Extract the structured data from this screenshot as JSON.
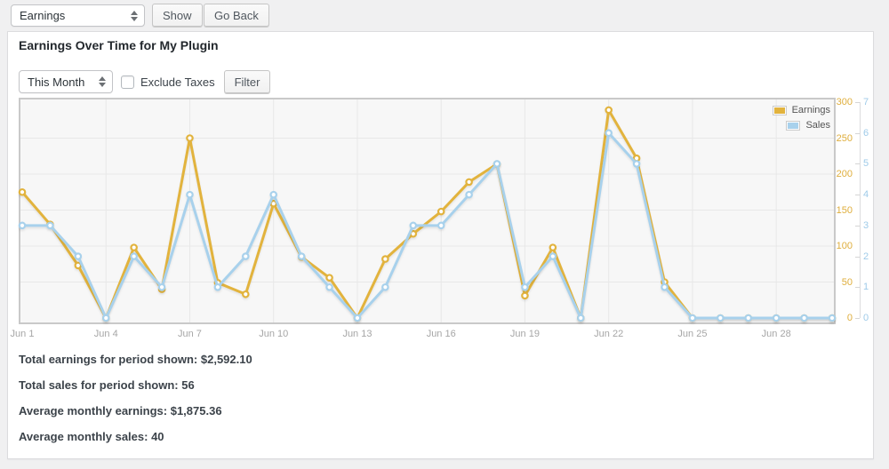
{
  "topbar": {
    "report_select": {
      "value": "Earnings"
    },
    "show_button": "Show",
    "go_back_button": "Go Back"
  },
  "panel": {
    "title": "Earnings Over Time for My Plugin",
    "filters": {
      "period_select": {
        "value": "This Month"
      },
      "exclude_taxes_label": "Exclude Taxes",
      "exclude_taxes_checked": false,
      "filter_button": "Filter"
    },
    "summary": {
      "total_earnings": "Total earnings for period shown: $2,592.10",
      "total_sales": "Total sales for period shown: 56",
      "avg_earnings": "Average monthly earnings: $1,875.36",
      "avg_sales": "Average monthly sales: 40"
    }
  },
  "chart_data": {
    "type": "line",
    "x": [
      "Jun 1",
      "Jun 2",
      "Jun 3",
      "Jun 4",
      "Jun 5",
      "Jun 6",
      "Jun 7",
      "Jun 8",
      "Jun 9",
      "Jun 10",
      "Jun 11",
      "Jun 12",
      "Jun 13",
      "Jun 14",
      "Jun 15",
      "Jun 16",
      "Jun 17",
      "Jun 18",
      "Jun 19",
      "Jun 20",
      "Jun 21",
      "Jun 22",
      "Jun 23",
      "Jun 24",
      "Jun 25",
      "Jun 26",
      "Jun 27",
      "Jun 28",
      "Jun 29",
      "Jun 30"
    ],
    "series": [
      {
        "name": "Earnings",
        "axis": "earnings",
        "color": "#e2b33d",
        "values": [
          175,
          130,
          73,
          0,
          98,
          40,
          250,
          49,
          33,
          159,
          85,
          56,
          0,
          82,
          117,
          148,
          189,
          214,
          31,
          98,
          0,
          289,
          222,
          50,
          0,
          0,
          0,
          0,
          0,
          0
        ]
      },
      {
        "name": "Sales",
        "axis": "sales",
        "color": "#a8d1ec",
        "values": [
          3,
          3,
          2,
          0,
          2,
          1,
          4,
          1,
          2,
          4,
          2,
          1,
          0,
          1,
          3,
          3,
          4,
          5,
          1,
          2,
          0,
          6,
          5,
          1,
          0,
          0,
          0,
          0,
          0,
          0
        ]
      }
    ],
    "axes": {
      "x": {
        "tick_indices": [
          0,
          3,
          6,
          9,
          12,
          15,
          18,
          21,
          24,
          27
        ],
        "color": "#a6a6a6"
      },
      "earnings": {
        "side": "right",
        "min": 0,
        "max": 300,
        "ticks": [
          0,
          50,
          100,
          150,
          200,
          250,
          300
        ],
        "color": "#dfae3d"
      },
      "sales": {
        "side": "far-right",
        "min": 0,
        "max": 7,
        "ticks": [
          0,
          1,
          2,
          3,
          4,
          5,
          6,
          7
        ],
        "color": "#9fcbe9"
      }
    },
    "legend": {
      "position": "top-right",
      "entries": [
        "Earnings",
        "Sales"
      ]
    },
    "grid": {
      "background": "#f7f7f7",
      "line_color": "#e8e8e8",
      "border_color": "#c9c9c9",
      "grid_on": true
    },
    "marker": {
      "fill": "#ffffff",
      "radius": 3.2
    }
  }
}
